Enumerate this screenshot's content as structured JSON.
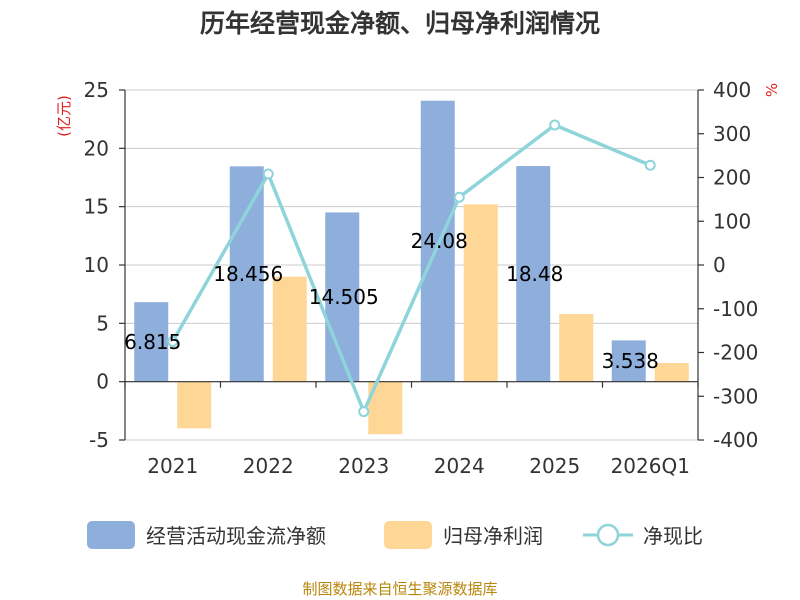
{
  "chart_data": {
    "type": "bar",
    "title": "历年经营现金净额、归母净利润情况",
    "categories": [
      "2021",
      "2022",
      "2023",
      "2024",
      "2025",
      "2026Q1"
    ],
    "left_unit": "(亿元)",
    "right_unit": "%",
    "left_ylim": [
      -5,
      25
    ],
    "left_ticks": [
      "25",
      "20",
      "15",
      "10",
      "5",
      "0",
      "-5"
    ],
    "right_ylim": [
      -400,
      400
    ],
    "right_ticks": [
      "400",
      "300",
      "200",
      "100",
      "0",
      "-100",
      "-200",
      "-300",
      "-400"
    ],
    "series": [
      {
        "name": "经营活动现金流净额",
        "kind": "bar",
        "axis": "left",
        "color": "#8eaedb",
        "values": [
          6.815,
          18.456,
          14.505,
          24.08,
          18.48,
          3.538
        ],
        "labels": [
          "6.815",
          "18.456",
          "14.505",
          "24.08",
          "18.48",
          "3.538"
        ]
      },
      {
        "name": "归母净利润",
        "kind": "bar",
        "axis": "left",
        "color": "#fed797",
        "values": [
          -4.0,
          9.0,
          -4.5,
          15.2,
          5.8,
          1.6
        ]
      },
      {
        "name": "净现比",
        "kind": "line",
        "axis": "right",
        "color": "#8ed4da",
        "values": [
          -175,
          208,
          -335,
          155,
          320,
          228
        ]
      }
    ],
    "grid": true,
    "legend_position": "bottom"
  },
  "footer": {
    "source": "制图数据来自恒生聚源数据库"
  }
}
